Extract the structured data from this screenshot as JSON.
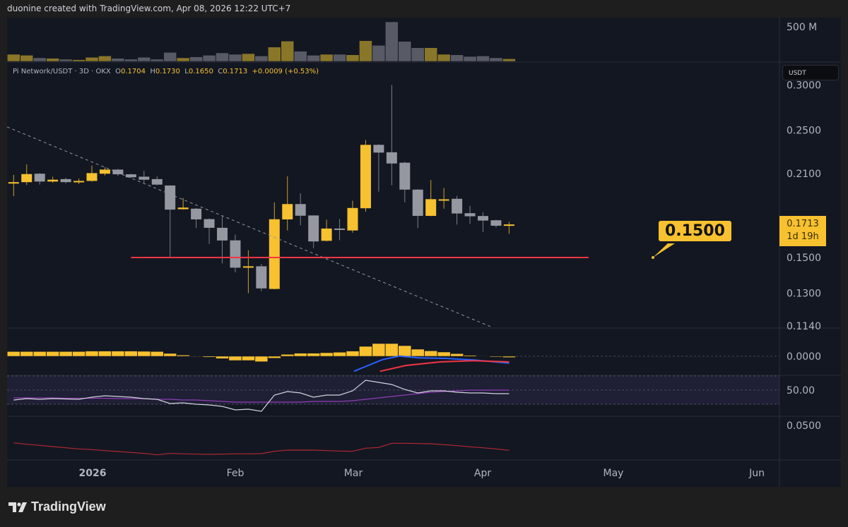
{
  "header": {
    "credit": "duonine created with TradingView.com, Apr 08, 2026 12:22 UTC+7"
  },
  "legend": {
    "symbol": "Pi Network/USDT · 3D · OKX",
    "o_label": "O",
    "o": "0.1704",
    "h_label": "H",
    "h": "0.1730",
    "l_label": "L",
    "l": "0.1650",
    "c_label": "C",
    "c": "0.1713",
    "change": "+0.0009 (+0.53%)"
  },
  "currency_button": "USDT",
  "last_price": {
    "price": "0.1713",
    "countdown": "1d 19h"
  },
  "callout": {
    "text": "0.1500",
    "price": 0.15
  },
  "brand": "TradingView",
  "colors": {
    "up": "#f7c12f",
    "down": "#9598a1",
    "vol_up": "#8a7629",
    "vol_down": "#585b66",
    "support": "#f23645",
    "trend": "#9598a1",
    "macd": "#2962ff",
    "signal": "#f23645",
    "rsi": "#d1d4dc",
    "rsi_ma": "#8e3fb4",
    "bg": "#131722"
  },
  "chart_data": {
    "type": "candlestick",
    "interval": "3D",
    "price_scale": "log",
    "price_ticks": [
      "0.3000",
      "0.2500",
      "0.2100",
      "0.1500",
      "0.1300",
      "0.1140"
    ],
    "volume_ticks": [
      "500 M"
    ],
    "macd_ticks": [
      "0.0000"
    ],
    "rsi_ticks": [
      "50.00"
    ],
    "osc3_ticks": [
      "0.0500"
    ],
    "time_ticks": [
      "2026",
      "Feb",
      "Mar",
      "Apr",
      "May",
      "Jun"
    ],
    "candles_ohlc": [
      [
        0.202,
        0.209,
        0.1919,
        0.203
      ],
      [
        0.203,
        0.218,
        0.2008,
        0.2097
      ],
      [
        0.21,
        0.2105,
        0.201,
        0.2035
      ],
      [
        0.2035,
        0.2075,
        0.2025,
        0.205
      ],
      [
        0.2055,
        0.2065,
        0.202,
        0.203
      ],
      [
        0.203,
        0.206,
        0.2015,
        0.204
      ],
      [
        0.204,
        0.217,
        0.2035,
        0.2105
      ],
      [
        0.21,
        0.2155,
        0.2085,
        0.2135
      ],
      [
        0.2135,
        0.214,
        0.208,
        0.2095
      ],
      [
        0.2095,
        0.21,
        0.2065,
        0.207
      ],
      [
        0.2075,
        0.2125,
        0.2025,
        0.205
      ],
      [
        0.2055,
        0.208,
        0.2005,
        0.201
      ],
      [
        0.2003,
        0.2005,
        0.15,
        0.1818
      ],
      [
        0.1821,
        0.1905,
        0.1818,
        0.1833
      ],
      [
        0.1825,
        0.183,
        0.1688,
        0.1748
      ],
      [
        0.175,
        0.1755,
        0.1584,
        0.169
      ],
      [
        0.169,
        0.177,
        0.1465,
        0.1606
      ],
      [
        0.1607,
        0.1644,
        0.1413,
        0.144
      ],
      [
        0.144,
        0.1544,
        0.13,
        0.1448
      ],
      [
        0.1448,
        0.1462,
        0.131,
        0.1325
      ],
      [
        0.1322,
        0.1872,
        0.132,
        0.1749
      ],
      [
        0.1748,
        0.2078,
        0.1672,
        0.1859
      ],
      [
        0.1859,
        0.1941,
        0.1707,
        0.1774
      ],
      [
        0.1776,
        0.1776,
        0.1558,
        0.16
      ],
      [
        0.1604,
        0.1746,
        0.16,
        0.1685
      ],
      [
        0.1685,
        0.1751,
        0.1608,
        0.1678
      ],
      [
        0.1672,
        0.1884,
        0.1657,
        0.183
      ],
      [
        0.1828,
        0.2405,
        0.1803,
        0.2358
      ],
      [
        0.2358,
        0.2365,
        0.1954,
        0.2286
      ],
      [
        0.2289,
        0.3,
        0.2004,
        0.2188
      ],
      [
        0.2195,
        0.2203,
        0.1872,
        0.197
      ],
      [
        0.197,
        0.1975,
        0.1688,
        0.1773
      ],
      [
        0.1773,
        0.2047,
        0.177,
        0.1896
      ],
      [
        0.1895,
        0.1982,
        0.1825,
        0.1895
      ],
      [
        0.1899,
        0.1921,
        0.1712,
        0.179
      ],
      [
        0.1792,
        0.1845,
        0.1716,
        0.177
      ],
      [
        0.1772,
        0.1799,
        0.1661,
        0.174
      ],
      [
        0.1742,
        0.1745,
        0.1691,
        0.1704
      ],
      [
        0.1704,
        0.173,
        0.165,
        0.1713
      ]
    ],
    "volume_millions": [
      102,
      88,
      51,
      44,
      31,
      24,
      58,
      78,
      44,
      31,
      58,
      31,
      129,
      51,
      65,
      88,
      122,
      102,
      112,
      78,
      207,
      293,
      146,
      88,
      102,
      102,
      95,
      299,
      231,
      571,
      289,
      197,
      197,
      102,
      95,
      71,
      78,
      51,
      37
    ],
    "macd_histogram": [
      0.002,
      0.002,
      0.002,
      0.002,
      0.002,
      0.002,
      0.0022,
      0.0022,
      0.0022,
      0.0022,
      0.0021,
      0.002,
      0.0012,
      0.0005,
      0.0,
      -0.0004,
      -0.001,
      -0.0018,
      -0.0018,
      -0.0023,
      -0.0008,
      0.0008,
      0.0013,
      0.0013,
      0.0015,
      0.0017,
      0.0022,
      0.0042,
      0.0054,
      0.0054,
      0.0045,
      0.003,
      0.0023,
      0.0018,
      0.0011,
      0.0004,
      0.0001,
      -0.0003,
      -0.0005
    ],
    "macd_line": {
      "bar_index": [
        26.1,
        28.3,
        29.6,
        31.1,
        33.2,
        35.3,
        38
      ],
      "values": [
        -0.0064,
        -0.0014,
        0.0001,
        -0.0007,
        -0.0009,
        -0.0016,
        -0.0029
      ]
    },
    "signal_line": {
      "bar_index": [
        28.1,
        30.1,
        32.7,
        35.3,
        38
      ],
      "values": [
        -0.0064,
        -0.0039,
        -0.0024,
        -0.0019,
        -0.0024
      ]
    },
    "rsi": [
      36,
      38,
      37,
      38,
      37.5,
      37,
      40,
      42,
      41,
      40,
      38,
      37,
      31,
      32,
      30,
      29,
      27,
      22,
      23,
      20,
      43,
      48,
      46,
      40,
      43,
      43,
      49,
      64,
      61,
      58,
      51,
      46,
      49,
      49,
      47,
      46,
      46,
      45,
      45
    ],
    "rsi_ma": [
      39,
      39,
      39,
      39,
      38.5,
      38.5,
      38.5,
      38.5,
      38,
      38,
      38,
      37,
      37,
      36,
      36,
      35,
      34,
      33,
      33,
      33,
      33,
      33,
      33,
      34,
      34,
      34,
      35,
      37,
      39,
      41,
      43,
      45,
      47,
      48,
      49,
      50,
      50,
      50,
      50
    ],
    "rsi_band": [
      30,
      70
    ],
    "osc3": [
      0.0352,
      0.034,
      0.033,
      0.032,
      0.031,
      0.03,
      0.0294,
      0.0286,
      0.0278,
      0.027,
      0.0262,
      0.025,
      0.0262,
      0.0258,
      0.0256,
      0.0254,
      0.0256,
      0.0258,
      0.0258,
      0.026,
      0.028,
      0.029,
      0.029,
      0.029,
      0.0286,
      0.0282,
      0.028,
      0.0306,
      0.0312,
      0.0348,
      0.0348,
      0.0346,
      0.0344,
      0.0336,
      0.0328,
      0.0318,
      0.031,
      0.03,
      0.0288
    ],
    "trendline": {
      "from": {
        "bar_index": -0.5,
        "price": 0.2534
      },
      "to": {
        "bar_index": 36.6,
        "price": 0.1136
      },
      "style": "dashed"
    },
    "support_line": {
      "price": 0.15,
      "from_bar_index": 9.0,
      "to_bar_index": 44.1
    }
  }
}
